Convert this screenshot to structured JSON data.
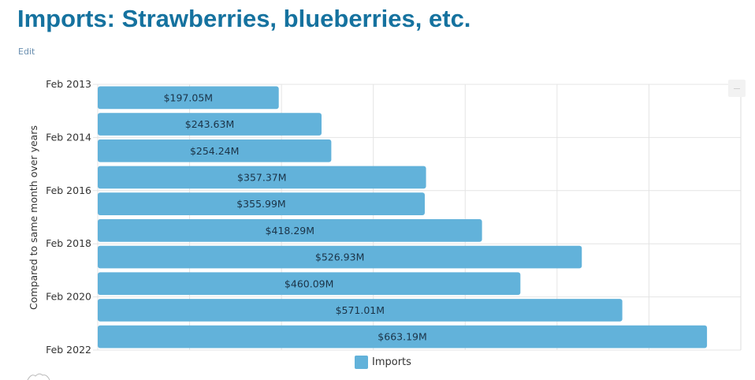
{
  "page": {
    "title": "Imports: Strawberries, blueberries, etc.",
    "edit_link": "Edit"
  },
  "colors": {
    "title": "#15729f",
    "bar": "#62b2da",
    "grid": "#e4e4e4"
  },
  "chart_data": {
    "type": "bar",
    "orientation": "horizontal",
    "title": "",
    "xlabel": "",
    "ylabel": "Compared to same month over years",
    "xlim": [
      0,
      700
    ],
    "x_gridline_step": 100,
    "x_tick_labels_visible": false,
    "grid": true,
    "y_tick_labels": [
      "Feb 2013",
      "Feb 2014",
      "Feb 2016",
      "Feb 2018",
      "Feb 2020",
      "Feb 2022"
    ],
    "series": [
      {
        "name": "Imports",
        "values": [
          197.05,
          243.63,
          254.24,
          357.37,
          355.99,
          418.29,
          526.93,
          460.09,
          571.01,
          663.19
        ],
        "labels": [
          "$197.05M",
          "$243.63M",
          "$254.24M",
          "$357.37M",
          "$355.99M",
          "$418.29M",
          "$526.93M",
          "$460.09M",
          "$571.01M",
          "$663.19M"
        ]
      }
    ],
    "legend": {
      "position": "bottom-center",
      "entries": [
        "Imports"
      ]
    }
  }
}
